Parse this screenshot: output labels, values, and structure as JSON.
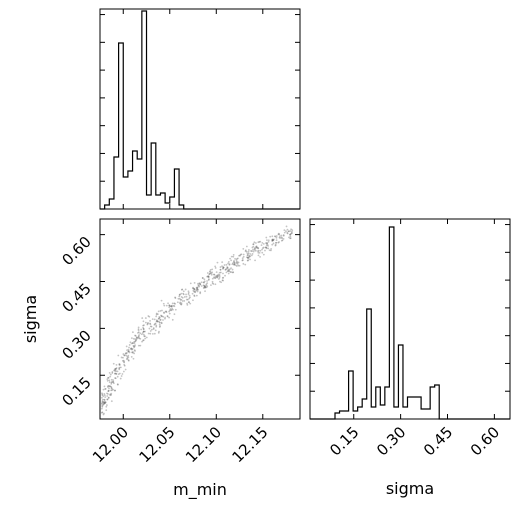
{
  "chart_data": [
    {
      "type": "histogram",
      "panel": "top-left",
      "variable": "m_min",
      "xlim": [
        11.975,
        12.19
      ],
      "ylim": [
        0,
        1.0
      ],
      "bin_start": 11.98,
      "bin_width": 0.005,
      "counts": [
        0.02,
        0.05,
        0.26,
        0.83,
        0.16,
        0.19,
        0.29,
        0.25,
        0.99,
        0.07,
        0.33,
        0.07,
        0.08,
        0.03,
        0.06,
        0.2,
        0.02,
        0.0
      ],
      "yticks_count": 7,
      "xticks": [
        12.0,
        12.05,
        12.1,
        12.15
      ]
    },
    {
      "type": "scatter",
      "panel": "bottom-left",
      "xlabel": "m_min",
      "ylabel": "sigma",
      "xlim": [
        11.975,
        12.19
      ],
      "ylim": [
        0.01,
        0.65
      ],
      "xticks": [
        12.0,
        12.05,
        12.1,
        12.15
      ],
      "xtick_labels": [
        "12.00",
        "12.05",
        "12.10",
        "12.15"
      ],
      "yticks": [
        0.15,
        0.3,
        0.45,
        0.6
      ],
      "ytick_labels": [
        "0.15",
        "0.30",
        "0.45",
        "0.60"
      ],
      "trend": {
        "x": [
          11.977,
          11.985,
          11.995,
          12.005,
          12.015,
          12.03,
          12.045,
          12.06,
          12.08,
          12.1,
          12.12,
          12.14,
          12.16,
          12.18
        ],
        "y": [
          0.06,
          0.11,
          0.17,
          0.22,
          0.26,
          0.31,
          0.35,
          0.39,
          0.43,
          0.47,
          0.51,
          0.545,
          0.575,
          0.61
        ]
      },
      "point_color": "#555555"
    },
    {
      "type": "histogram",
      "panel": "bottom-right",
      "xlabel": "sigma",
      "xlim": [
        0.01,
        0.65
      ],
      "ylim": [
        0,
        1.0
      ],
      "bin_start": 0.09,
      "bin_width": 0.0145,
      "counts": [
        0.03,
        0.04,
        0.04,
        0.24,
        0.04,
        0.06,
        0.1,
        0.55,
        0.06,
        0.16,
        0.07,
        0.16,
        0.96,
        0.06,
        0.37,
        0.06,
        0.11,
        0.11,
        0.11,
        0.05,
        0.05,
        0.16,
        0.17,
        0.0
      ],
      "yticks_count": 7,
      "xticks": [
        0.15,
        0.3,
        0.45,
        0.6
      ],
      "xtick_labels": [
        "0.15",
        "0.30",
        "0.45",
        "0.60"
      ]
    }
  ]
}
